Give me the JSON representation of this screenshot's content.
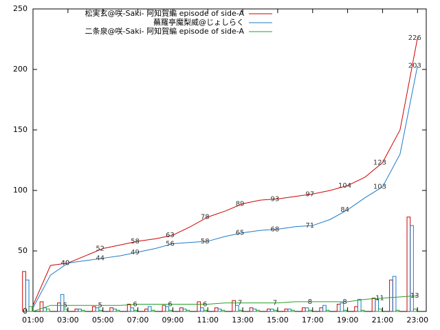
{
  "chart_data": {
    "type": "line",
    "x": [
      1,
      2,
      3,
      4,
      5,
      6,
      7,
      8,
      9,
      10,
      11,
      12,
      13,
      14,
      15,
      16,
      17,
      18,
      19,
      20,
      21,
      22,
      23
    ],
    "xlim": [
      1,
      23.5
    ],
    "xticks": [
      {
        "value": 1,
        "label": "01:00"
      },
      {
        "value": 3,
        "label": "03:00"
      },
      {
        "value": 5,
        "label": "05:00"
      },
      {
        "value": 7,
        "label": "07:00"
      },
      {
        "value": 9,
        "label": "09:00"
      },
      {
        "value": 11,
        "label": "11:00"
      },
      {
        "value": 13,
        "label": "13:00"
      },
      {
        "value": 15,
        "label": "15:00"
      },
      {
        "value": 17,
        "label": "17:00"
      },
      {
        "value": 19,
        "label": "19:00"
      },
      {
        "value": 21,
        "label": "21:00"
      },
      {
        "value": 23,
        "label": "23:00"
      }
    ],
    "ylim": [
      0,
      250
    ],
    "yticks": [
      0,
      50,
      100,
      150,
      200,
      250
    ],
    "series": [
      {
        "name": "松実玄@咲-Saki- 阿知賀編 episode of side-A",
        "color": "#cc0000",
        "values": [
          5,
          38,
          40,
          46,
          52,
          55,
          58,
          60,
          63,
          70,
          78,
          83,
          89,
          92,
          93,
          95,
          97,
          100,
          104,
          111,
          123,
          150,
          226
        ],
        "bars": [
          33,
          8,
          7,
          2,
          4,
          3,
          6,
          2,
          5,
          3,
          8,
          3,
          9,
          3,
          2,
          2,
          3,
          3,
          6,
          4,
          11,
          26,
          78
        ]
      },
      {
        "name": "蕪羅亭魔梨威@じょしらく",
        "color": "#1a7ac8",
        "values": [
          3,
          30,
          40,
          42,
          44,
          46,
          49,
          52,
          56,
          57,
          58,
          62,
          65,
          67,
          68,
          70,
          71,
          76,
          84,
          94,
          103,
          130,
          203
        ],
        "bars": [
          26,
          3,
          14,
          2,
          3,
          2,
          3,
          4,
          4,
          2,
          3,
          2,
          5,
          2,
          2,
          2,
          3,
          5,
          7,
          10,
          10,
          29,
          71
        ]
      },
      {
        "name": "二条泉@咲-Saki- 阿知賀編 episode of side-A",
        "color": "#22a022",
        "values": [
          0,
          5,
          5,
          5,
          5,
          5,
          6,
          6,
          6,
          6,
          6,
          7,
          7,
          7,
          7,
          8,
          8,
          8,
          8,
          10,
          11,
          12,
          13
        ],
        "bars": [
          4,
          2,
          2,
          1,
          1,
          1,
          1,
          1,
          1,
          1,
          1,
          1,
          1,
          1,
          1,
          1,
          1,
          1,
          1,
          1,
          2,
          1,
          2
        ]
      }
    ]
  }
}
